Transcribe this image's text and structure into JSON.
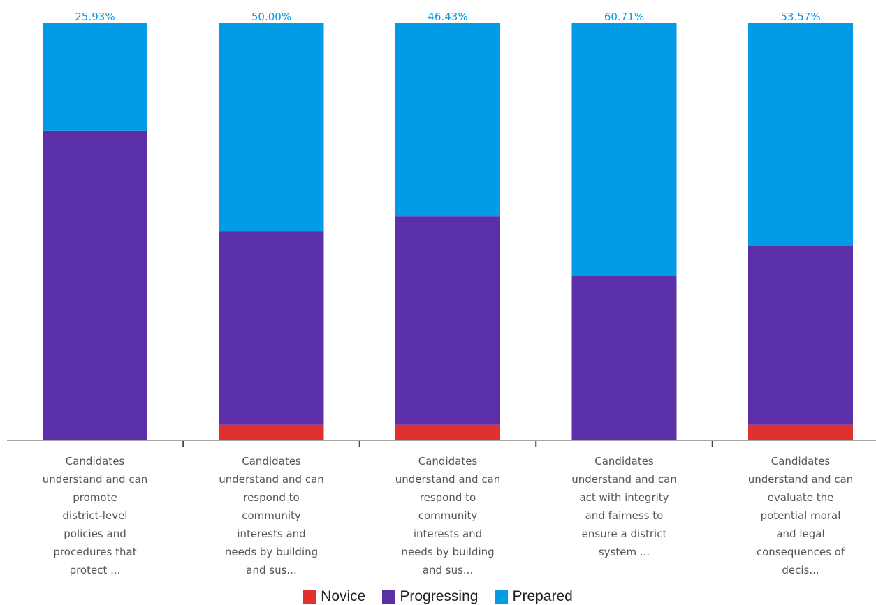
{
  "chart_data": {
    "type": "bar",
    "stacked": true,
    "ylim": [
      0,
      100
    ],
    "grid": false,
    "legend_position": "bottom",
    "categories": [
      "Candidates\nunderstand and can\npromote\ndistrict-level\npolicies and\nprocedures that\nprotect ...",
      "Candidates\nunderstand and can\nrespond to\ncommunity\ninterests and\nneeds by building\nand sus...",
      "Candidates\nunderstand and can\nrespond to\ncommunity\ninterests and\nneeds by building\nand sus...",
      "Candidates\nunderstand and can\nact with integrity\nand fairness to\nensure a district\nsystem ...",
      "Candidates\nunderstand and can\nevaluate the\npotential moral\nand legal\nconsequences of\ndecis..."
    ],
    "series": [
      {
        "name": "Novice",
        "color": "#e03131",
        "values": [
          0,
          3.57,
          3.57,
          0,
          3.57
        ]
      },
      {
        "name": "Progressing",
        "color": "#5b2fa8",
        "values": [
          74.07,
          46.43,
          50.0,
          39.29,
          42.86
        ]
      },
      {
        "name": "Prepared",
        "color": "#039be5",
        "values": [
          25.93,
          50.0,
          46.43,
          60.71,
          53.57
        ]
      }
    ]
  }
}
